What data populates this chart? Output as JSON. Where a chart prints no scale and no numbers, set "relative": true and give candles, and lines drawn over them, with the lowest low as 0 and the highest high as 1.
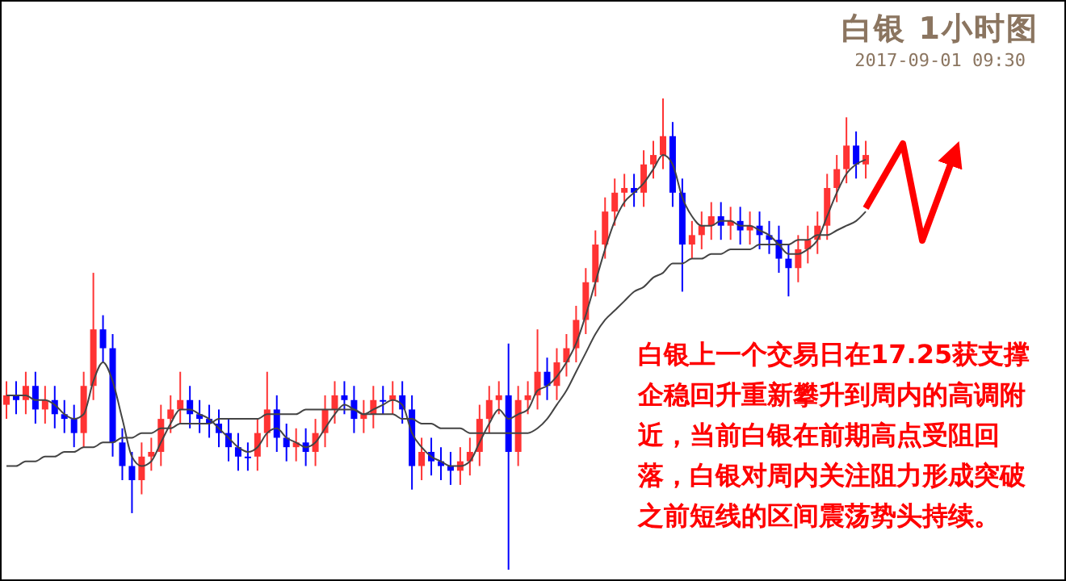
{
  "chart_data": {
    "type": "candlestick",
    "title": "白银 1小时图",
    "subtitle": "2017-09-01 09:30",
    "annotations": [
      "白银上一个交易日在17.25获支撑企稳回升重新攀升到周内的高调附近，当前白银在前期高点受阻回落，白银对周内关注阻力形成突破之前短线的区间震荡势头持续。"
    ],
    "relative": true,
    "marker": "none",
    "categories": [
      null,
      null,
      null,
      null,
      null,
      null,
      null,
      null,
      null,
      null,
      null,
      null,
      null,
      null,
      null,
      null,
      null,
      null,
      null,
      null,
      null,
      null,
      null,
      null,
      null,
      null,
      null,
      null,
      null,
      null,
      null,
      null,
      null,
      null,
      null,
      null,
      null,
      null,
      null,
      null,
      null,
      null,
      null,
      null,
      null,
      null,
      null,
      null,
      null,
      null,
      null,
      null,
      null,
      null,
      null,
      null,
      null,
      null,
      null,
      null,
      null,
      null,
      null,
      null,
      null,
      null,
      null,
      null,
      null,
      null,
      null,
      null,
      null,
      null,
      null,
      null,
      null,
      null,
      null,
      null,
      null,
      null,
      null,
      null,
      null,
      null,
      null,
      null,
      null,
      null
    ],
    "ohlc": [
      [
        0.35,
        0.4,
        0.32,
        0.37
      ],
      [
        0.37,
        0.4,
        0.33,
        0.36
      ],
      [
        0.36,
        0.42,
        0.33,
        0.39
      ],
      [
        0.39,
        0.42,
        0.31,
        0.34
      ],
      [
        0.34,
        0.39,
        0.31,
        0.36
      ],
      [
        0.36,
        0.39,
        0.3,
        0.33
      ],
      [
        0.33,
        0.36,
        0.29,
        0.32
      ],
      [
        0.32,
        0.35,
        0.26,
        0.29
      ],
      [
        0.29,
        0.42,
        0.26,
        0.39
      ],
      [
        0.39,
        0.63,
        0.36,
        0.51
      ],
      [
        0.51,
        0.54,
        0.44,
        0.47
      ],
      [
        0.47,
        0.5,
        0.24,
        0.27
      ],
      [
        0.27,
        0.3,
        0.19,
        0.22
      ],
      [
        0.22,
        0.25,
        0.12,
        0.19
      ],
      [
        0.19,
        0.27,
        0.16,
        0.24
      ],
      [
        0.24,
        0.28,
        0.21,
        0.25
      ],
      [
        0.25,
        0.35,
        0.22,
        0.32
      ],
      [
        0.32,
        0.37,
        0.29,
        0.34
      ],
      [
        0.34,
        0.42,
        0.31,
        0.36
      ],
      [
        0.36,
        0.39,
        0.3,
        0.33
      ],
      [
        0.33,
        0.36,
        0.29,
        0.32
      ],
      [
        0.32,
        0.35,
        0.28,
        0.31
      ],
      [
        0.31,
        0.34,
        0.26,
        0.29
      ],
      [
        0.29,
        0.32,
        0.23,
        0.26
      ],
      [
        0.26,
        0.29,
        0.21,
        0.24
      ],
      [
        0.24,
        0.27,
        0.21,
        0.24
      ],
      [
        0.24,
        0.32,
        0.21,
        0.29
      ],
      [
        0.29,
        0.42,
        0.26,
        0.34
      ],
      [
        0.34,
        0.37,
        0.25,
        0.28
      ],
      [
        0.28,
        0.31,
        0.23,
        0.26
      ],
      [
        0.26,
        0.3,
        0.23,
        0.27
      ],
      [
        0.27,
        0.3,
        0.22,
        0.25
      ],
      [
        0.25,
        0.32,
        0.22,
        0.29
      ],
      [
        0.29,
        0.37,
        0.26,
        0.34
      ],
      [
        0.34,
        0.4,
        0.31,
        0.37
      ],
      [
        0.37,
        0.4,
        0.33,
        0.36
      ],
      [
        0.36,
        0.39,
        0.29,
        0.32
      ],
      [
        0.32,
        0.36,
        0.29,
        0.33
      ],
      [
        0.33,
        0.39,
        0.3,
        0.36
      ],
      [
        0.36,
        0.39,
        0.33,
        0.36
      ],
      [
        0.36,
        0.4,
        0.33,
        0.37
      ],
      [
        0.37,
        0.4,
        0.31,
        0.34
      ],
      [
        0.34,
        0.37,
        0.17,
        0.22
      ],
      [
        0.22,
        0.28,
        0.19,
        0.25
      ],
      [
        0.25,
        0.28,
        0.2,
        0.23
      ],
      [
        0.23,
        0.26,
        0.19,
        0.22
      ],
      [
        0.22,
        0.25,
        0.18,
        0.21
      ],
      [
        0.21,
        0.26,
        0.18,
        0.23
      ],
      [
        0.23,
        0.28,
        0.2,
        0.25
      ],
      [
        0.25,
        0.35,
        0.22,
        0.32
      ],
      [
        0.32,
        0.39,
        0.29,
        0.36
      ],
      [
        0.36,
        0.4,
        0.33,
        0.37
      ],
      [
        0.37,
        0.48,
        0,
        0.25
      ],
      [
        0.25,
        0.39,
        0.22,
        0.36
      ],
      [
        0.36,
        0.4,
        0.33,
        0.37
      ],
      [
        0.37,
        0.51,
        0.34,
        0.42
      ],
      [
        0.42,
        0.45,
        0.36,
        0.39
      ],
      [
        0.39,
        0.47,
        0.36,
        0.44
      ],
      [
        0.44,
        0.5,
        0.41,
        0.47
      ],
      [
        0.47,
        0.56,
        0.44,
        0.53
      ],
      [
        0.53,
        0.64,
        0.5,
        0.61
      ],
      [
        0.61,
        0.72,
        0.58,
        0.69
      ],
      [
        0.69,
        0.79,
        0.66,
        0.76
      ],
      [
        0.76,
        0.83,
        0.73,
        0.8
      ],
      [
        0.8,
        0.84,
        0.77,
        0.81
      ],
      [
        0.81,
        0.84,
        0.77,
        0.8
      ],
      [
        0.8,
        0.89,
        0.77,
        0.86
      ],
      [
        0.86,
        0.91,
        0.83,
        0.88
      ],
      [
        0.88,
        1,
        0.85,
        0.92
      ],
      [
        0.92,
        0.95,
        0.77,
        0.8
      ],
      [
        0.8,
        0.83,
        0.59,
        0.69
      ],
      [
        0.69,
        0.74,
        0.66,
        0.71
      ],
      [
        0.71,
        0.76,
        0.68,
        0.73
      ],
      [
        0.73,
        0.78,
        0.7,
        0.75
      ],
      [
        0.75,
        0.78,
        0.7,
        0.73
      ],
      [
        0.73,
        0.77,
        0.7,
        0.74
      ],
      [
        0.74,
        0.77,
        0.69,
        0.72
      ],
      [
        0.72,
        0.76,
        0.69,
        0.73
      ],
      [
        0.73,
        0.76,
        0.68,
        0.71
      ],
      [
        0.71,
        0.74,
        0.67,
        0.7
      ],
      [
        0.7,
        0.73,
        0.63,
        0.66
      ],
      [
        0.66,
        0.69,
        0.58,
        0.64
      ],
      [
        0.64,
        0.71,
        0.61,
        0.68
      ],
      [
        0.68,
        0.73,
        0.65,
        0.7
      ],
      [
        0.7,
        0.76,
        0.67,
        0.73
      ],
      [
        0.73,
        0.84,
        0.7,
        0.81
      ],
      [
        0.81,
        0.88,
        0.78,
        0.85
      ],
      [
        0.85,
        0.96,
        0.82,
        0.9
      ],
      [
        0.9,
        0.93,
        0.83,
        0.86
      ],
      [
        0.86,
        0.91,
        0.83,
        0.88
      ]
    ],
    "colors": [
      "#ff3333",
      "#0000ff",
      "#ff3333",
      "#0000ff",
      "#ff3333",
      "#0000ff",
      "#0000ff",
      "#0000ff",
      "#ff3333",
      "#ff3333",
      "#0000ff",
      "#0000ff",
      "#0000ff",
      "#0000ff",
      "#ff3333",
      "#ff3333",
      "#ff3333",
      "#ff3333",
      "#ff3333",
      "#0000ff",
      "#0000ff",
      "#0000ff",
      "#0000ff",
      "#0000ff",
      "#0000ff",
      "#0000ff",
      "#ff3333",
      "#ff3333",
      "#0000ff",
      "#0000ff",
      "#ff3333",
      "#0000ff",
      "#ff3333",
      "#ff3333",
      "#ff3333",
      "#0000ff",
      "#0000ff",
      "#ff3333",
      "#ff3333",
      "#0000ff",
      "#ff3333",
      "#0000ff",
      "#0000ff",
      "#ff3333",
      "#0000ff",
      "#0000ff",
      "#0000ff",
      "#ff3333",
      "#ff3333",
      "#ff3333",
      "#ff3333",
      "#ff3333",
      "#0000ff",
      "#ff3333",
      "#ff3333",
      "#ff3333",
      "#0000ff",
      "#ff3333",
      "#ff3333",
      "#ff3333",
      "#ff3333",
      "#ff3333",
      "#ff3333",
      "#ff3333",
      "#ff3333",
      "#0000ff",
      "#ff3333",
      "#ff3333",
      "#ff3333",
      "#0000ff",
      "#0000ff",
      "#ff3333",
      "#ff3333",
      "#ff3333",
      "#0000ff",
      "#ff3333",
      "#0000ff",
      "#ff3333",
      "#0000ff",
      "#0000ff",
      "#0000ff",
      "#0000ff",
      "#ff3333",
      "#ff3333",
      "#ff3333",
      "#ff3333",
      "#ff3333",
      "#ff3333",
      "#0000ff",
      "#ff3333"
    ],
    "series": [
      {
        "type": "line",
        "color": "#444444",
        "values": [
          0.37,
          0.37,
          0.37,
          0.36,
          0.36,
          0.35,
          0.33,
          0.32,
          0.33,
          0.4,
          0.44,
          0.4,
          0.32,
          0.24,
          0.22,
          0.23,
          0.27,
          0.31,
          0.34,
          0.34,
          0.33,
          0.32,
          0.3,
          0.28,
          0.26,
          0.25,
          0.26,
          0.29,
          0.3,
          0.28,
          0.27,
          0.26,
          0.27,
          0.3,
          0.33,
          0.35,
          0.34,
          0.33,
          0.34,
          0.35,
          0.36,
          0.35,
          0.29,
          0.26,
          0.24,
          0.23,
          0.22,
          0.22,
          0.23,
          0.27,
          0.31,
          0.34,
          0.32,
          0.33,
          0.34,
          0.38,
          0.39,
          0.41,
          0.44,
          0.48,
          0.54,
          0.61,
          0.68,
          0.74,
          0.78,
          0.8,
          0.82,
          0.85,
          0.88,
          0.86,
          0.79,
          0.75,
          0.73,
          0.73,
          0.74,
          0.74,
          0.73,
          0.73,
          0.72,
          0.71,
          0.69,
          0.67,
          0.67,
          0.68,
          0.7,
          0.75,
          0.8,
          0.84,
          0.86,
          0.87
        ]
      },
      {
        "type": "line",
        "color": "#444444",
        "values": [
          0.22,
          0.22,
          0.23,
          0.23,
          0.24,
          0.24,
          0.25,
          0.25,
          0.26,
          0.26,
          0.27,
          0.27,
          0.28,
          0.28,
          0.29,
          0.29,
          0.3,
          0.3,
          0.31,
          0.31,
          0.31,
          0.31,
          0.32,
          0.32,
          0.32,
          0.32,
          0.32,
          0.33,
          0.33,
          0.33,
          0.33,
          0.34,
          0.34,
          0.34,
          0.34,
          0.34,
          0.34,
          0.33,
          0.33,
          0.33,
          0.33,
          0.32,
          0.32,
          0.31,
          0.31,
          0.3,
          0.3,
          0.3,
          0.29,
          0.29,
          0.29,
          0.29,
          0.29,
          0.29,
          0.29,
          0.3,
          0.32,
          0.35,
          0.38,
          0.42,
          0.46,
          0.5,
          0.53,
          0.55,
          0.57,
          0.59,
          0.6,
          0.62,
          0.63,
          0.65,
          0.65,
          0.66,
          0.66,
          0.67,
          0.67,
          0.68,
          0.68,
          0.68,
          0.69,
          0.69,
          0.69,
          0.69,
          0.7,
          0.7,
          0.71,
          0.71,
          0.72,
          0.73,
          0.74,
          0.76
        ]
      }
    ]
  }
}
